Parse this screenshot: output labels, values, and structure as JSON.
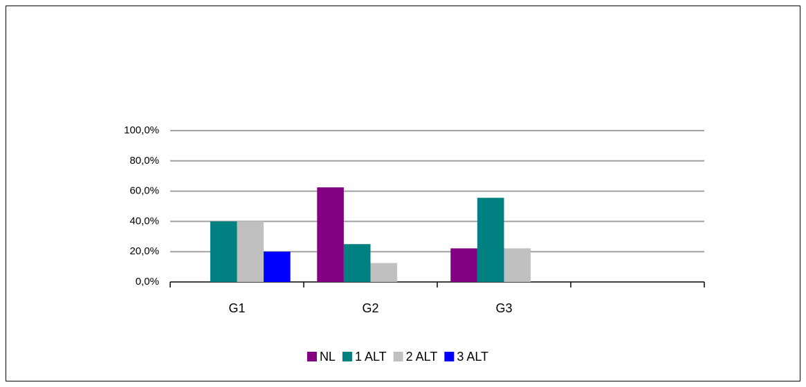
{
  "chart_data": {
    "type": "bar",
    "categories": [
      "G1",
      "G2",
      "G3",
      null
    ],
    "series": [
      {
        "name": "NL",
        "color": "#800080",
        "values": [
          0,
          62.5,
          22.2,
          null
        ]
      },
      {
        "name": "1 ALT",
        "color": "#008080",
        "values": [
          40,
          25,
          55.6,
          null
        ]
      },
      {
        "name": "2 ALT",
        "color": "#c0c0c0",
        "values": [
          40,
          12.5,
          22.2,
          null
        ]
      },
      {
        "name": "3 ALT",
        "color": "#0000ff",
        "values": [
          20,
          0,
          0,
          null
        ]
      }
    ],
    "ylim": [
      0,
      100
    ],
    "yticks": [
      {
        "value": 0,
        "label": "0,0%"
      },
      {
        "value": 20,
        "label": "20,0%"
      },
      {
        "value": 40,
        "label": "40,0%"
      },
      {
        "value": 60,
        "label": "60,0%"
      },
      {
        "value": 80,
        "label": "80,0%"
      },
      {
        "value": 100,
        "label": "100,0%"
      }
    ],
    "grid": true,
    "legend": "bottom"
  }
}
